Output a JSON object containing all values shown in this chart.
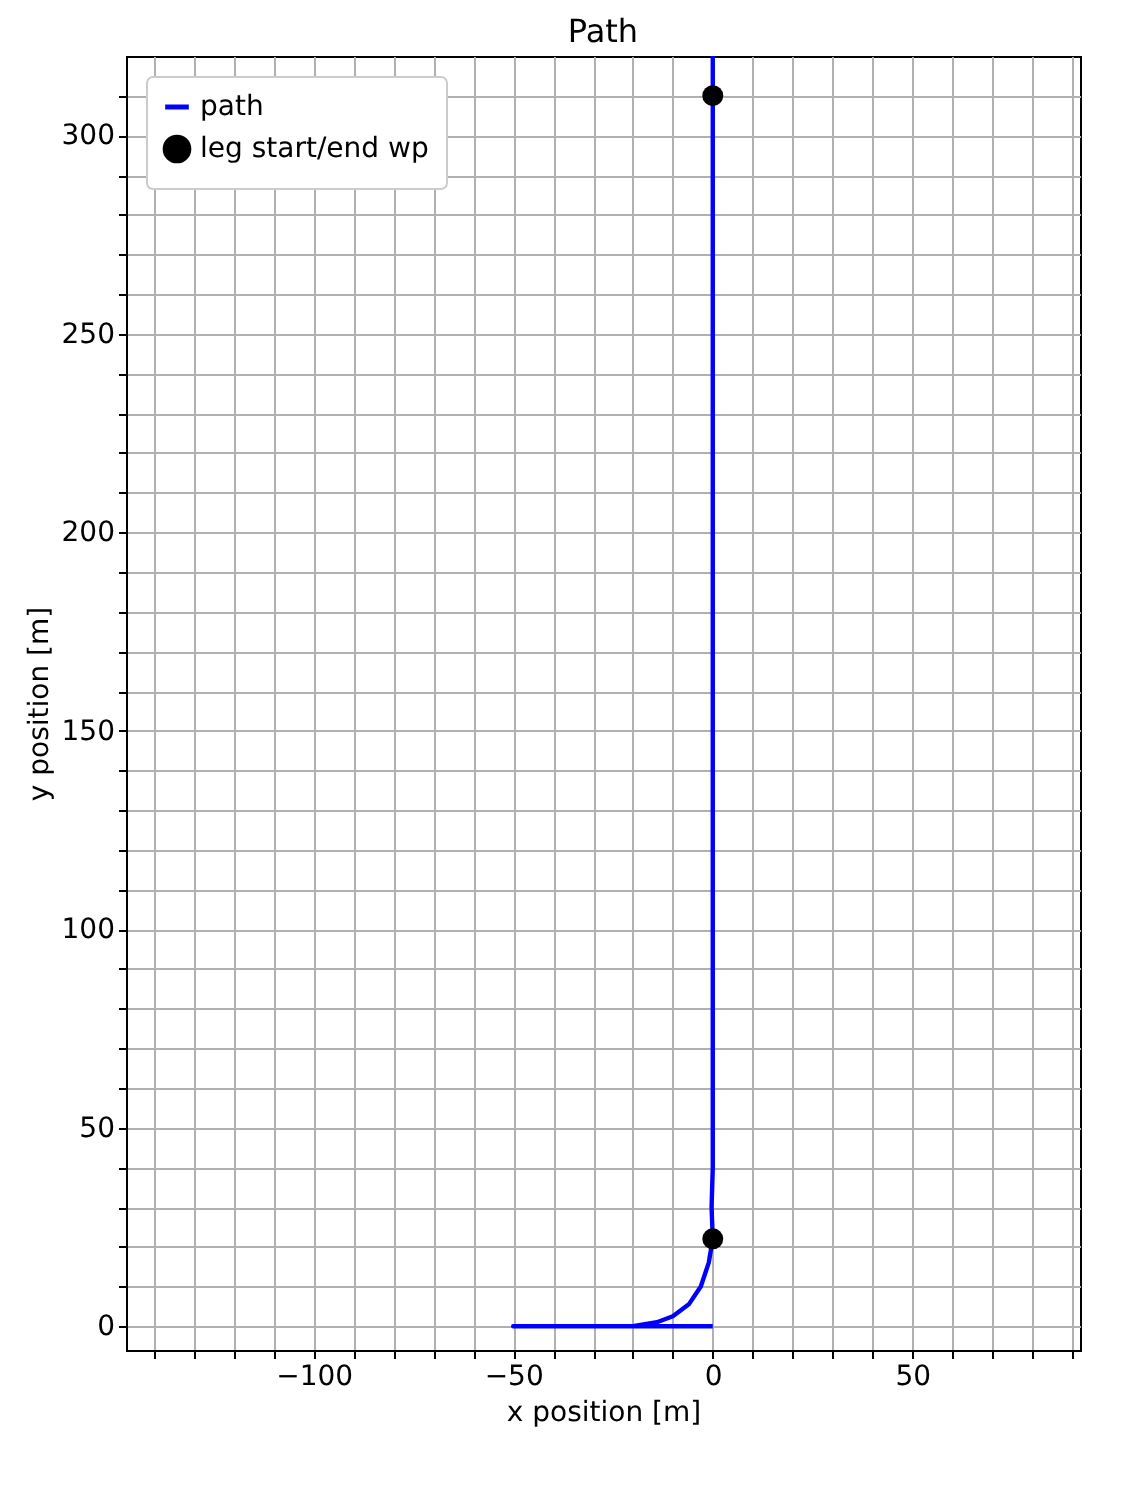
{
  "chart_data": {
    "type": "line",
    "title": "Path",
    "xlabel": "x position [m]",
    "ylabel": "y position [m]",
    "xlim": [
      -147,
      92
    ],
    "ylim": [
      -6,
      320
    ],
    "xticks": [
      {
        "value": -140,
        "label": null
      },
      {
        "value": -130,
        "label": null
      },
      {
        "value": -120,
        "label": null
      },
      {
        "value": -110,
        "label": null
      },
      {
        "value": -100,
        "label": "−100"
      },
      {
        "value": -90,
        "label": null
      },
      {
        "value": -80,
        "label": null
      },
      {
        "value": -70,
        "label": null
      },
      {
        "value": -60,
        "label": null
      },
      {
        "value": -50,
        "label": "−50"
      },
      {
        "value": -40,
        "label": null
      },
      {
        "value": -30,
        "label": null
      },
      {
        "value": -20,
        "label": null
      },
      {
        "value": -10,
        "label": null
      },
      0,
      {
        "value": 10,
        "label": null
      },
      {
        "value": 20,
        "label": null
      },
      {
        "value": 30,
        "label": null
      },
      {
        "value": 40,
        "label": null
      },
      50,
      {
        "value": 60,
        "label": null
      },
      {
        "value": 70,
        "label": null
      },
      {
        "value": 80,
        "label": null
      },
      {
        "value": 90,
        "label": null
      }
    ],
    "yticks": [
      0,
      {
        "value": 10,
        "label": null
      },
      {
        "value": 20,
        "label": null
      },
      {
        "value": 30,
        "label": null
      },
      {
        "value": 40,
        "label": null
      },
      50,
      {
        "value": 60,
        "label": null
      },
      {
        "value": 70,
        "label": null
      },
      {
        "value": 80,
        "label": null
      },
      {
        "value": 90,
        "label": null
      },
      100,
      {
        "value": 110,
        "label": null
      },
      {
        "value": 120,
        "label": null
      },
      {
        "value": 130,
        "label": null
      },
      {
        "value": 140,
        "label": null
      },
      150,
      {
        "value": 160,
        "label": null
      },
      {
        "value": 170,
        "label": null
      },
      {
        "value": 180,
        "label": null
      },
      {
        "value": 190,
        "label": null
      },
      200,
      {
        "value": 210,
        "label": null
      },
      {
        "value": 220,
        "label": null
      },
      {
        "value": 230,
        "label": null
      },
      {
        "value": 240,
        "label": null
      },
      250,
      {
        "value": 260,
        "label": null
      },
      {
        "value": 270,
        "label": null
      },
      {
        "value": 280,
        "label": null
      },
      {
        "value": 290,
        "label": null
      },
      300,
      {
        "value": 310,
        "label": null
      }
    ],
    "grid": true,
    "legend": "top left",
    "line_style": "solid",
    "series": [
      {
        "name": "path",
        "type": "line",
        "color": "#0000ff",
        "x": [
          0,
          -50,
          -20,
          -14,
          -10,
          -6,
          -3,
          -1,
          0,
          -0.3,
          0,
          0
        ],
        "values": [
          0,
          0,
          0,
          1,
          2.5,
          5.5,
          10,
          16,
          22,
          30,
          40,
          320
        ]
      },
      {
        "name": "leg start/end wp",
        "type": "scatter",
        "color": "#000000",
        "x": [
          0,
          0
        ],
        "values": [
          22,
          310
        ]
      }
    ]
  }
}
